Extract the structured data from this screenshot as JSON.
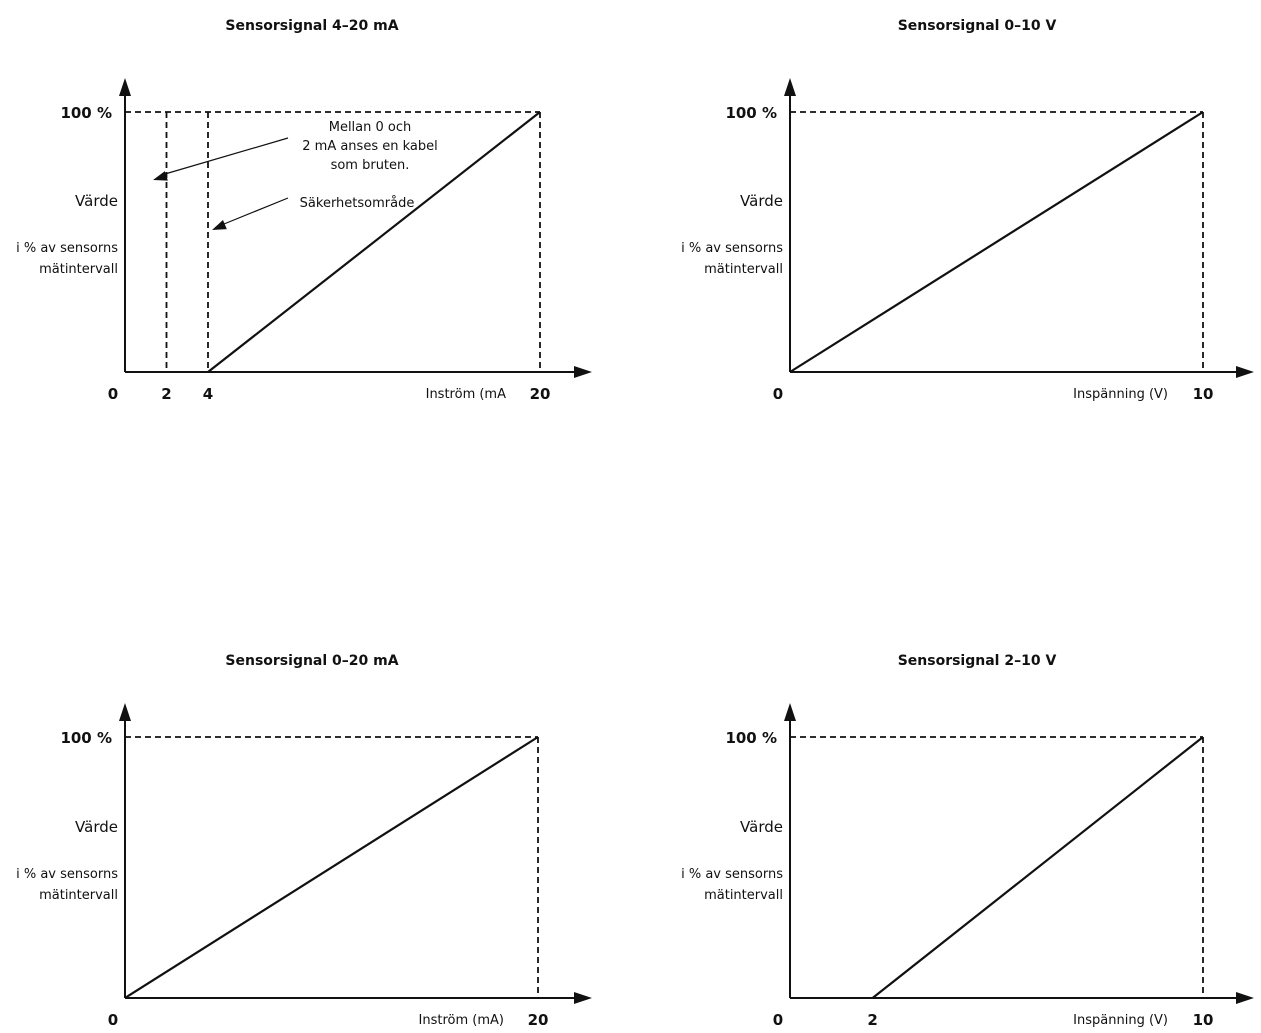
{
  "chart_data": [
    {
      "type": "line",
      "title": "Sensorsignal 4–20 mA",
      "xlabel": "Inström (mA",
      "ylabel_lines": [
        "Värde",
        "i % av sensorns",
        "mätintervall"
      ],
      "y_max_label": "100 %",
      "origin_label": "0",
      "x_ticks": [
        "2",
        "4",
        "20"
      ],
      "xlim": [
        0,
        20
      ],
      "ylim": [
        0,
        100
      ],
      "series": [
        {
          "x": [
            4,
            20
          ],
          "y": [
            0,
            100
          ]
        }
      ],
      "guides_x": [
        2,
        4,
        20
      ],
      "annotations": [
        {
          "lines": [
            "Mellan 0 och",
            "2 mA anses en kabel",
            "som bruten."
          ]
        },
        {
          "lines": [
            "Säkerhetsområde"
          ]
        }
      ]
    },
    {
      "type": "line",
      "title": "Sensorsignal 0–10 V",
      "xlabel": "Inspänning (V)",
      "ylabel_lines": [
        "Värde",
        "i % av sensorns",
        "mätintervall"
      ],
      "y_max_label": "100 %",
      "origin_label": "0",
      "x_ticks": [
        "10"
      ],
      "xlim": [
        0,
        10
      ],
      "ylim": [
        0,
        100
      ],
      "series": [
        {
          "x": [
            0,
            10
          ],
          "y": [
            0,
            100
          ]
        }
      ],
      "guides_x": [
        10
      ],
      "annotations": []
    },
    {
      "type": "line",
      "title": "Sensorsignal 0–20 mA",
      "xlabel": "Inström (mA)",
      "ylabel_lines": [
        "Värde",
        "i % av sensorns",
        "mätintervall"
      ],
      "y_max_label": "100 %",
      "origin_label": "0",
      "x_ticks": [
        "20"
      ],
      "xlim": [
        0,
        20
      ],
      "ylim": [
        0,
        100
      ],
      "series": [
        {
          "x": [
            0,
            20
          ],
          "y": [
            0,
            100
          ]
        }
      ],
      "guides_x": [
        20
      ],
      "annotations": []
    },
    {
      "type": "line",
      "title": "Sensorsignal 2–10 V",
      "xlabel": "Inspänning (V)",
      "ylabel_lines": [
        "Värde",
        "i % av sensorns",
        "mätintervall"
      ],
      "y_max_label": "100 %",
      "origin_label": "0",
      "x_ticks": [
        "2",
        "10"
      ],
      "xlim": [
        0,
        10
      ],
      "ylim": [
        0,
        100
      ],
      "series": [
        {
          "x": [
            2,
            10
          ],
          "y": [
            0,
            100
          ]
        }
      ],
      "guides_x": [
        10
      ],
      "annotations": []
    }
  ]
}
